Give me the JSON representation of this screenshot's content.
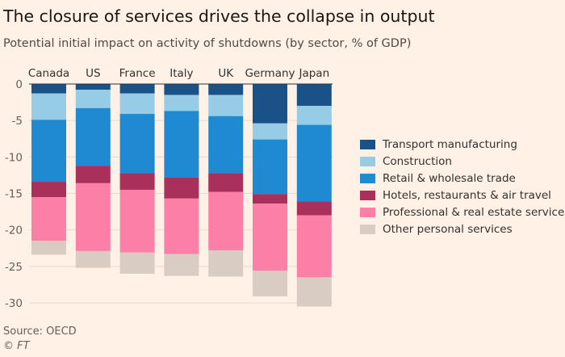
{
  "title": "The closure of services drives the collapse in output",
  "subtitle": "Potential initial impact on activity of shutdowns (by sector, % of GDP)",
  "source": "Source: OECD",
  "credit": "© FT",
  "chart_data": {
    "type": "bar",
    "stacked": true,
    "orientation": "vertical",
    "categories": [
      "Canada",
      "US",
      "France",
      "Italy",
      "UK",
      "Germany",
      "Japan"
    ],
    "category_axis_position": "top",
    "ylim": [
      -30,
      0
    ],
    "yticks": [
      0,
      -5,
      -10,
      -15,
      -20,
      -25,
      -30
    ],
    "ytick_labels": [
      "0",
      "-5",
      "-10",
      "-15",
      "-20",
      "-25",
      "-30"
    ],
    "grid": true,
    "legend_position": "right",
    "series": [
      {
        "name": "Transport manufacturing",
        "color": "#1a5288",
        "values": [
          -1.3,
          -0.8,
          -1.3,
          -1.5,
          -1.5,
          -5.4,
          -3.0
        ]
      },
      {
        "name": "Construction",
        "color": "#96cce6",
        "values": [
          -3.6,
          -2.5,
          -2.8,
          -2.2,
          -2.9,
          -2.2,
          -2.6
        ]
      },
      {
        "name": "Retail & wholesale trade",
        "color": "#1f8ad2",
        "values": [
          -8.5,
          -7.9,
          -8.1,
          -9.1,
          -7.8,
          -7.5,
          -10.5
        ]
      },
      {
        "name": "Hotels, restaurants & air travel",
        "color": "#a8305b",
        "values": [
          -2.1,
          -2.4,
          -2.3,
          -2.9,
          -2.6,
          -1.3,
          -1.9
        ]
      },
      {
        "name": "Professional & real estate services",
        "color": "#fb7fa6",
        "values": [
          -6.0,
          -9.3,
          -8.6,
          -7.6,
          -8.0,
          -9.2,
          -8.5
        ]
      },
      {
        "name": "Other personal services",
        "color": "#d9ccc3",
        "values": [
          -1.9,
          -2.3,
          -2.9,
          -3.0,
          -3.6,
          -3.5,
          -4.0
        ]
      }
    ]
  }
}
